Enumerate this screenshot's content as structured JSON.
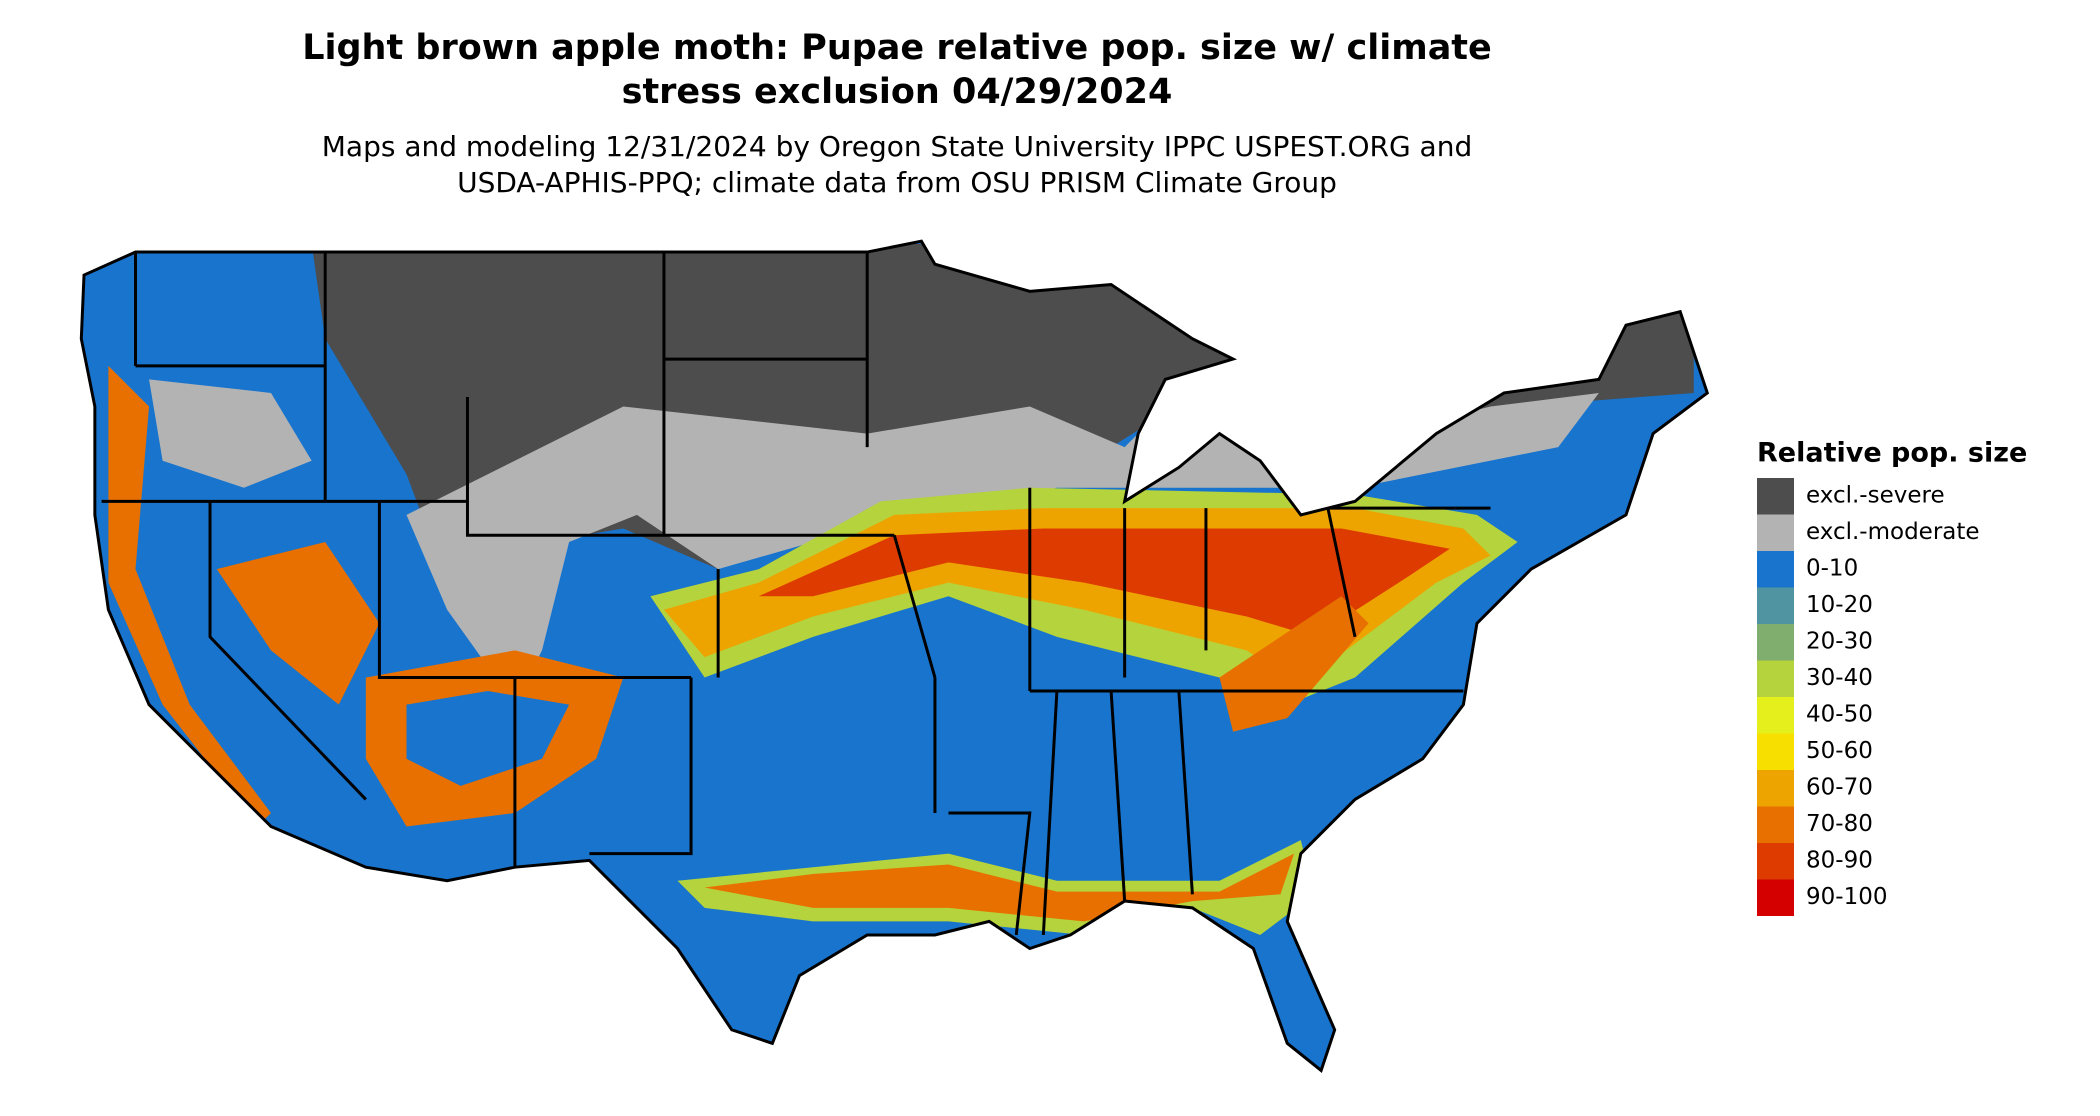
{
  "title": [
    "Light brown apple moth: Pupae relative pop. size w/ climate",
    "stress exclusion 04/29/2024"
  ],
  "subtitle": [
    "Maps and modeling 12/31/2024 by Oregon State University IPPC USPEST.ORG and",
    "USDA-APHIS-PPQ; climate data from OSU PRISM Climate Group"
  ],
  "legend": {
    "title": "Relative pop. size",
    "items": [
      {
        "label": "excl.-severe",
        "color": "#4d4d4d"
      },
      {
        "label": "excl.-moderate",
        "color": "#b3b3b3"
      },
      {
        "label": "0-10",
        "color": "#1874cd"
      },
      {
        "label": "10-20",
        "color": "#4f94a0"
      },
      {
        "label": "20-30",
        "color": "#7fae6e"
      },
      {
        "label": "30-40",
        "color": "#b4d33c"
      },
      {
        "label": "40-50",
        "color": "#e5ef1b"
      },
      {
        "label": "50-60",
        "color": "#f7e000"
      },
      {
        "label": "60-70",
        "color": "#eea400"
      },
      {
        "label": "70-80",
        "color": "#e77000"
      },
      {
        "label": "80-90",
        "color": "#dd3b00"
      },
      {
        "label": "90-100",
        "color": "#d40000"
      }
    ]
  }
}
